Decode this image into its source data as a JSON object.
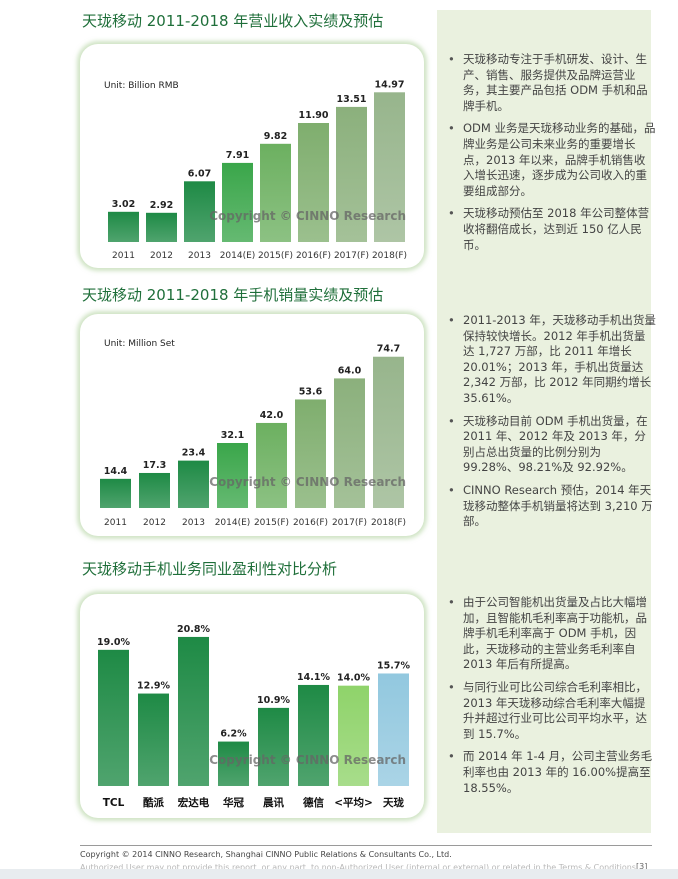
{
  "sections": [
    {
      "title": "天珑移动 2011-2018 年营业收入实绩及预估"
    },
    {
      "title": "天珑移动 2011-2018 年手机销量实绩及预估"
    },
    {
      "title": "天珑移动手机业务同业盈利性对比分析"
    }
  ],
  "chart_data": [
    {
      "type": "bar",
      "unit_label": "Unit: Billion RMB",
      "categories": [
        "2011",
        "2012",
        "2013",
        "2014(E)",
        "2015(F)",
        "2016(F)",
        "2017(F)",
        "2018(F)"
      ],
      "values": [
        3.02,
        2.92,
        6.07,
        7.91,
        9.82,
        11.9,
        13.51,
        14.97
      ],
      "value_labels": [
        "3.02",
        "2.92",
        "6.07",
        "7.91",
        "9.82",
        "11.90",
        "13.51",
        "14.97"
      ],
      "ylim": [
        0,
        16
      ],
      "watermark": "Copyright © CINNO Research",
      "colors": [
        "#1e8a45",
        "#1e8a45",
        "#1e8a45",
        "#3aa64a",
        "#6cb060",
        "#7fae6e",
        "#8bb07c",
        "#97b58c"
      ]
    },
    {
      "type": "bar",
      "unit_label": "Unit: Million Set",
      "categories": [
        "2011",
        "2012",
        "2013",
        "2014(E)",
        "2015(F)",
        "2016(F)",
        "2017(F)",
        "2018(F)"
      ],
      "values": [
        14.4,
        17.3,
        23.4,
        32.1,
        42.0,
        53.6,
        64.0,
        74.7
      ],
      "value_labels": [
        "14.4",
        "17.3",
        "23.4",
        "32.1",
        "42.0",
        "53.6",
        "64.0",
        "74.7"
      ],
      "ylim": [
        0,
        80
      ],
      "watermark": "Copyright © CINNO Research",
      "colors": [
        "#1e8a45",
        "#1e8a45",
        "#1e8a45",
        "#3aa64a",
        "#6cb060",
        "#7fae6e",
        "#8bb07c",
        "#97b58c"
      ]
    },
    {
      "type": "bar",
      "categories": [
        "TCL",
        "酷派",
        "宏达电",
        "华冠",
        "晨讯",
        "德信",
        "<平均>",
        "天珑"
      ],
      "values": [
        19.0,
        12.9,
        20.8,
        6.2,
        10.9,
        14.1,
        14.0,
        15.7
      ],
      "value_labels": [
        "19.0%",
        "12.9%",
        "20.8%",
        "6.2%",
        "10.9%",
        "14.1%",
        "14.0%",
        "15.7%"
      ],
      "ylim": [
        0,
        24
      ],
      "watermark": "Copyright © CINNO Research",
      "colors": [
        "#1e8a45",
        "#1e8a45",
        "#1e8a45",
        "#1e8a45",
        "#1e8a45",
        "#1e8a45",
        "#8fd36a",
        "#92c8df"
      ]
    }
  ],
  "sidebar": {
    "group1": [
      "天珑移动专注于手机研发、设计、生产、销售、服务提供及品牌运营业务，其主要产品包括 ODM 手机和品牌手机。",
      "ODM 业务是天珑移动业务的基础，品牌业务是公司未来业务的重要增长点，2013 年以来，品牌手机销售收入增长迅速，逐步成为公司收入的重要组成部分。",
      "天珑移动预估至 2018 年公司整体营收将翻倍成长，达到近 150 亿人民币。"
    ],
    "group2": [
      "2011-2013 年，天珑移动手机出货量保持较快增长。2012 年手机出货量达 1,727 万部，比 2011 年增长 20.01%；2013 年，手机出货量达 2,342 万部，比 2012 年同期约增长 35.61%。",
      "天珑移动目前 ODM 手机出货量，在 2011 年、2012 年及 2013 年，分别占总出货量的比例分别为 99.28%、98.21%及 92.92%。",
      "CINNO Research 预估，2014 年天珑移动整体手机销量将达到 3,210 万部。"
    ],
    "group3": [
      "由于公司智能机出货量及占比大幅增加，且智能机毛利率高于功能机，品牌手机毛利率高于 ODM 手机，因此，天珑移动的主营业务毛利率自 2013 年后有所提高。",
      "与同行业可比公司综合毛利率相比，2013 年天珑移动综合毛利率大幅提升并超过行业可比公司平均水平，达到 15.7%。",
      "而 2014 年 1-4 月，公司主营业务毛利率也由 2013 年的 16.00%提高至 18.55%。"
    ]
  },
  "footer": {
    "copyright": "Copyright © 2014 CINNO Research, Shanghai CINNO Public Relations & Consultants Co., Ltd.",
    "notice": "Authorized User may not provide this report, or any part, to non-Authorized User (internal or external) or related in the Terms & Conditions",
    "page": "[3]"
  }
}
